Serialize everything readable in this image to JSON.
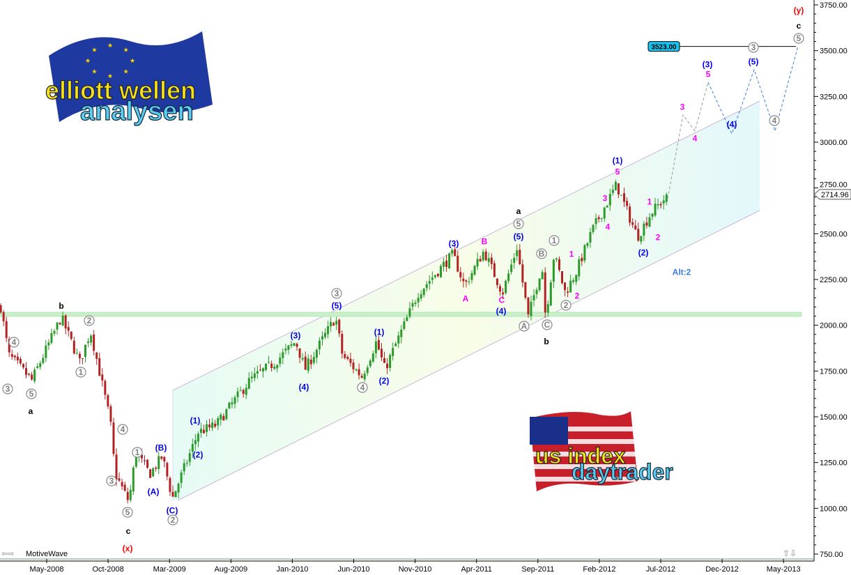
{
  "app": {
    "brand": "MotiveWave"
  },
  "logos": {
    "top_left": "elliott wellen analysen",
    "bottom_right": "us index daytrader"
  },
  "chart_data": {
    "type": "candlestick",
    "yscale": "linear",
    "ylim": [
      750,
      3750
    ],
    "y_ticks": [
      "750.00",
      "1000.00",
      "1250.00",
      "1500.00",
      "1750.00",
      "2000.00",
      "2250.00",
      "2500.00",
      "2750.00",
      "3000.00",
      "3250.00",
      "3500.00",
      "3750.00"
    ],
    "x_ticks": [
      "May-2008",
      "Oct-2008",
      "Mar-2009",
      "Aug-2009",
      "Jan-2010",
      "Jun-2010",
      "Nov-2010",
      "Apr-2011",
      "Sep-2011",
      "Feb-2012",
      "Jul-2012",
      "Dec-2012",
      "May-2013"
    ],
    "grid": false,
    "current_price": "2714.96",
    "target_price": "3523.00",
    "horizontal_band": [
      2050,
      2070
    ],
    "colors": {
      "up": "#2a9a2a",
      "down": "#b22222",
      "wave_blue": "#0000ee",
      "wave_magenta": "#ff00ff",
      "wave_gray": "#808080",
      "degree_red": "#ff0000",
      "alt": "#3a7be0",
      "target_box": "#19c3f0"
    },
    "price_path": [
      [
        "2008-01-08",
        2101
      ],
      [
        "2008-01-28",
        1835
      ],
      [
        "2008-03-25",
        1700
      ],
      [
        "2008-06-06",
        2044
      ],
      [
        "2008-07-22",
        1797
      ],
      [
        "2008-08-18",
        1968
      ],
      [
        "2008-10-06",
        1473
      ],
      [
        "2008-10-18",
        1188
      ],
      [
        "2008-11-21",
        1035
      ],
      [
        "2008-12-08",
        1302
      ],
      [
        "2009-01-12",
        1188
      ],
      [
        "2009-02-12",
        1283
      ],
      [
        "2009-03-09",
        1055
      ],
      [
        "2009-05-12",
        1416
      ],
      [
        "2009-06-25",
        1454
      ],
      [
        "2009-09-18",
        1702
      ],
      [
        "2009-11-18",
        1797
      ],
      [
        "2010-01-09",
        1911
      ],
      [
        "2010-02-01",
        1759
      ],
      [
        "2010-04-18",
        2044
      ],
      [
        "2010-05-05",
        1835
      ],
      [
        "2010-06-22",
        1720
      ],
      [
        "2010-07-28",
        1911
      ],
      [
        "2010-08-18",
        1759
      ],
      [
        "2010-11-09",
        2177
      ],
      [
        "2011-02-03",
        2387
      ],
      [
        "2011-03-04",
        2215
      ],
      [
        "2011-04-21",
        2406
      ],
      [
        "2011-06-06",
        2177
      ],
      [
        "2011-07-12",
        2425
      ],
      [
        "2011-08-09",
        2044
      ],
      [
        "2011-09-12",
        2330
      ],
      [
        "2011-09-21",
        2044
      ],
      [
        "2011-10-12",
        2387
      ],
      [
        "2011-11-09",
        2177
      ],
      [
        "2011-12-06",
        2292
      ],
      [
        "2012-01-15",
        2520
      ],
      [
        "2012-03-15",
        2767
      ],
      [
        "2012-05-06",
        2482
      ],
      [
        "2012-06-09",
        2615
      ],
      [
        "2012-07-22",
        2714.96
      ]
    ],
    "wave_labels": [
      {
        "t": "b",
        "c": "black"
      },
      {
        "t": "4",
        "c": "circle"
      },
      {
        "t": "3",
        "c": "circle"
      },
      {
        "t": "5",
        "c": "circle"
      },
      {
        "t": "a",
        "c": "black"
      },
      {
        "t": "2",
        "c": "circle"
      },
      {
        "t": "1",
        "c": "circle"
      },
      {
        "t": "4",
        "c": "circle"
      },
      {
        "t": "1",
        "c": "circle"
      },
      {
        "t": "3",
        "c": "circle"
      },
      {
        "t": "5",
        "c": "circle"
      },
      {
        "t": "c",
        "c": "black"
      },
      {
        "t": "(x)",
        "c": "red"
      },
      {
        "t": "(B)",
        "c": "blue"
      },
      {
        "t": "(A)",
        "c": "blue"
      },
      {
        "t": "(C)",
        "c": "blue"
      },
      {
        "t": "2",
        "c": "circle"
      },
      {
        "t": "(1)",
        "c": "blue"
      },
      {
        "t": "(2)",
        "c": "blue"
      },
      {
        "t": "(3)",
        "c": "blue"
      },
      {
        "t": "(4)",
        "c": "blue"
      },
      {
        "t": "3",
        "c": "circle"
      },
      {
        "t": "(5)",
        "c": "blue"
      },
      {
        "t": "(1)",
        "c": "blue"
      },
      {
        "t": "(2)",
        "c": "blue"
      },
      {
        "t": "4",
        "c": "circle"
      },
      {
        "t": "(3)",
        "c": "blue"
      },
      {
        "t": "B",
        "c": "magenta"
      },
      {
        "t": "A",
        "c": "magenta"
      },
      {
        "t": "C",
        "c": "magenta"
      },
      {
        "t": "(4)",
        "c": "blue"
      },
      {
        "t": "a",
        "c": "black"
      },
      {
        "t": "5",
        "c": "circle"
      },
      {
        "t": "(5)",
        "c": "blue"
      },
      {
        "t": "A",
        "c": "circle"
      },
      {
        "t": "B",
        "c": "circle"
      },
      {
        "t": "1",
        "c": "circle"
      },
      {
        "t": "C",
        "c": "circle"
      },
      {
        "t": "b",
        "c": "black"
      },
      {
        "t": "1",
        "c": "magenta"
      },
      {
        "t": "2",
        "c": "magenta"
      },
      {
        "t": "2",
        "c": "circle"
      },
      {
        "t": "3",
        "c": "magenta"
      },
      {
        "t": "4",
        "c": "magenta"
      },
      {
        "t": "5",
        "c": "magenta"
      },
      {
        "t": "(1)",
        "c": "blue"
      },
      {
        "t": "(2)",
        "c": "blue"
      },
      {
        "t": "1",
        "c": "magenta"
      },
      {
        "t": "2",
        "c": "magenta"
      },
      {
        "t": "Alt:2",
        "c": "alt"
      },
      {
        "t": "3",
        "c": "magenta"
      },
      {
        "t": "4",
        "c": "magenta"
      },
      {
        "t": "(3)",
        "c": "blue"
      },
      {
        "t": "5",
        "c": "magenta"
      },
      {
        "t": "(4)",
        "c": "blue"
      },
      {
        "t": "3",
        "c": "circle"
      },
      {
        "t": "(5)",
        "c": "blue"
      },
      {
        "t": "4",
        "c": "circle"
      },
      {
        "t": "5",
        "c": "circle"
      },
      {
        "t": "c",
        "c": "black"
      },
      {
        "t": "(y)",
        "c": "red"
      }
    ]
  }
}
